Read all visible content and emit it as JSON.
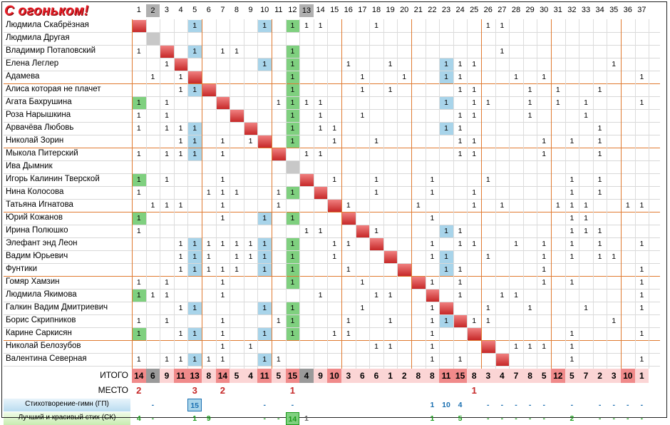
{
  "title": "С огоньком!",
  "columns": [
    "1",
    "2",
    "3",
    "4",
    "5",
    "6",
    "7",
    "8",
    "9",
    "10",
    "11",
    "12",
    "13",
    "14",
    "15",
    "16",
    "17",
    "18",
    "19",
    "20",
    "21",
    "22",
    "23",
    "24",
    "25",
    "26",
    "27",
    "28",
    "29",
    "30",
    "31",
    "32",
    "33",
    "34",
    "35",
    "36",
    "37"
  ],
  "rows": [
    {
      "name": "Людмила Скабрёзная",
      "marks": [
        5,
        10,
        12,
        13,
        14,
        18,
        26,
        27
      ]
    },
    {
      "name": "Людмила Другая",
      "marks": []
    },
    {
      "name": "Владимир Потаповский",
      "marks": [
        1,
        5,
        7,
        8,
        12,
        27
      ]
    },
    {
      "name": "Елена Леглер",
      "marks": [
        3,
        4,
        10,
        12,
        16,
        19,
        23,
        24,
        25,
        35
      ]
    },
    {
      "name": "Адамева",
      "marks": [
        2,
        4,
        12,
        17,
        20,
        23,
        24,
        28,
        30,
        37
      ]
    },
    {
      "name": "Алиса которая не плачет",
      "marks": [
        4,
        5,
        12,
        17,
        19,
        24,
        25,
        29,
        31,
        34
      ]
    },
    {
      "name": "Агата Бахрушина",
      "marks": [
        1,
        3,
        11,
        12,
        13,
        14,
        23,
        25,
        26,
        29,
        31,
        33,
        37
      ]
    },
    {
      "name": "Роза Нарышкина",
      "marks": [
        1,
        3,
        12,
        14,
        17,
        24,
        25,
        29,
        33
      ]
    },
    {
      "name": "Арвачёва Любовь",
      "marks": [
        1,
        3,
        4,
        5,
        12,
        14,
        15,
        23,
        24,
        34
      ]
    },
    {
      "name": "Николай Зорин",
      "marks": [
        4,
        5,
        7,
        9,
        12,
        15,
        18,
        24,
        25,
        30,
        32,
        34
      ]
    },
    {
      "name": "Мыкола Питерский",
      "marks": [
        1,
        3,
        4,
        5,
        7,
        13,
        14,
        24,
        25,
        30,
        34
      ]
    },
    {
      "name": "Ива Дымник",
      "marks": []
    },
    {
      "name": "Игорь Калинин Тверской",
      "marks": [
        1,
        3,
        7,
        15,
        18,
        22,
        26,
        32,
        34
      ]
    },
    {
      "name": "Нина Колосова",
      "marks": [
        1,
        6,
        7,
        8,
        11,
        12,
        14,
        18,
        22,
        25,
        32,
        34
      ]
    },
    {
      "name": "Татьяна Игнатова",
      "marks": [
        2,
        3,
        4,
        7,
        11,
        15,
        16,
        21,
        25,
        27,
        31,
        32,
        33,
        36,
        37
      ]
    },
    {
      "name": "Юрий Кожанов",
      "marks": [
        1,
        7,
        10,
        12,
        22,
        32,
        33
      ]
    },
    {
      "name": "Ирина Полюшко",
      "marks": [
        1,
        13,
        14,
        18,
        23,
        24,
        32,
        33,
        34
      ]
    },
    {
      "name": "Элефант энд Леон",
      "marks": [
        4,
        5,
        6,
        7,
        8,
        9,
        10,
        12,
        15,
        16,
        22,
        24,
        25,
        28,
        30,
        32,
        34,
        37
      ]
    },
    {
      "name": "Вадим Юрьевич",
      "marks": [
        4,
        5,
        6,
        8,
        9,
        10,
        12,
        15,
        22,
        23,
        26,
        30,
        32,
        34,
        35
      ]
    },
    {
      "name": "Фунтики",
      "marks": [
        4,
        5,
        6,
        7,
        8,
        10,
        12,
        16,
        23,
        24,
        30,
        37
      ]
    },
    {
      "name": "Гомяр Хамзин",
      "marks": [
        1,
        3,
        7,
        12,
        17,
        22,
        24,
        30,
        32,
        37
      ]
    },
    {
      "name": "Людмила Якимова",
      "marks": [
        1,
        2,
        3,
        7,
        14,
        18,
        19,
        22,
        24,
        27,
        28,
        37
      ]
    },
    {
      "name": "Галкин Вадим Дмитриевич",
      "marks": [
        4,
        5,
        10,
        12,
        17,
        22,
        26,
        29,
        33,
        37
      ]
    },
    {
      "name": "Борис Скрипников",
      "marks": [
        1,
        3,
        7,
        11,
        12,
        16,
        19,
        22,
        23,
        25,
        26,
        35
      ]
    },
    {
      "name": "Карине Саркисян",
      "marks": [
        1,
        4,
        5,
        7,
        10,
        12,
        15,
        16,
        22,
        25,
        32,
        37
      ]
    },
    {
      "name": "Николай Белозубов",
      "marks": [
        7,
        9,
        18,
        19,
        22,
        26,
        28,
        29,
        30,
        32
      ]
    },
    {
      "name": "Валентина Северная",
      "marks": [
        1,
        3,
        4,
        5,
        6,
        7,
        10,
        11,
        22,
        24,
        32,
        37
      ]
    }
  ],
  "summary": {
    "itogo_label": "ИТОГО",
    "itogo": [
      "14",
      "6",
      "9",
      "11",
      "13",
      "8",
      "14",
      "5",
      "4",
      "11",
      "5",
      "15",
      "4",
      "9",
      "10",
      "3",
      "6",
      "6",
      "1",
      "2",
      "8",
      "8",
      "11",
      "15",
      "8",
      "3",
      "4",
      "7",
      "8",
      "5",
      "12",
      "5",
      "7",
      "2",
      "3",
      "10",
      "1"
    ],
    "mesto_label": "МЕСТО",
    "mesto": [
      "2",
      "",
      "",
      "",
      "3",
      "",
      "2",
      "",
      "",
      "",
      "",
      "1",
      "",
      "",
      "",
      "",
      "",
      "",
      "",
      "",
      "",
      "",
      "",
      "",
      "1",
      "",
      "",
      "",
      "",
      "",
      "",
      "",
      "",
      "",
      "",
      "",
      ""
    ],
    "gp_label": "Стихотворение-гимн (ГП)",
    "gp": [
      "",
      "-",
      "",
      "",
      "15",
      "",
      "",
      "",
      "",
      "-",
      "",
      "-",
      "",
      "",
      "",
      "",
      "",
      "",
      "",
      "",
      "",
      "1",
      "10",
      "4",
      "",
      "-",
      "-",
      "-",
      "-",
      "-",
      "",
      "-",
      "",
      "-",
      "-",
      "-",
      "-"
    ],
    "sk_label": "Лучший и красивый стих (СК)",
    "sk": [
      "4",
      "-",
      "",
      "",
      "1",
      "9",
      "",
      "",
      "",
      "-",
      "-",
      "14",
      "1",
      "",
      "",
      "",
      "",
      "",
      "",
      "",
      "",
      "1",
      "",
      "5",
      "",
      "-",
      "-",
      "-",
      "-",
      "-",
      "",
      "2",
      "",
      "-",
      "-",
      "-",
      "-"
    ]
  },
  "colors": {
    "red": "#c62828",
    "green": "#7fd07f",
    "blue": "#a8d4ea",
    "orange": "#e07a30",
    "pink": "#f6b3b3",
    "gray": "#b0b0b0"
  }
}
